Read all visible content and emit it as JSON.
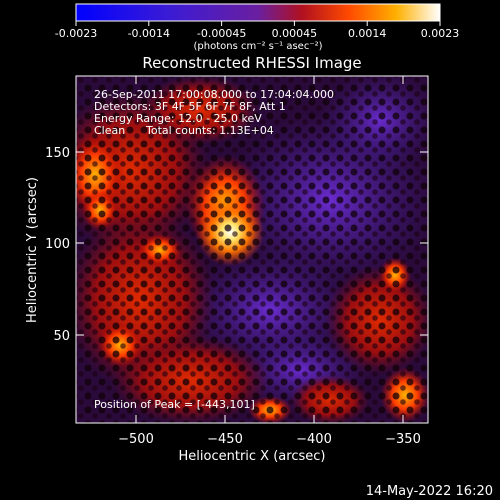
{
  "colorbar": {
    "ticks": [
      "-0.0023",
      "-0.0014",
      "-0.00045",
      "0.00045",
      "0.0014",
      "0.0023"
    ],
    "units": "(photons cm⁻² s⁻¹ asec⁻²)"
  },
  "plot": {
    "title": "Reconstructed RHESSI Image",
    "xlabel": "Heliocentric X (arcsec)",
    "ylabel": "Heliocentric Y (arcsec)",
    "x_ticks": [
      "−500",
      "−450",
      "−400",
      "−350"
    ],
    "y_ticks": [
      "150",
      "100",
      "50"
    ]
  },
  "annotations": {
    "time_range": "26-Sep-2011 17:00:08.000 to 17:04:04.000",
    "detectors": "Detectors: 3F 4F 5F 6F 7F 8F, Att 1",
    "energy": "Energy Range: 12.0 - 25.0 keV",
    "method": "Clean",
    "counts": "Total counts: 1.13E+04",
    "peak": "Position of Peak = [-443,101]"
  },
  "footer": {
    "timestamp": "14-May-2022 16:20"
  },
  "colors": {
    "background": "#000000",
    "cmap_low": "#0000ff",
    "cmap_mid": "#6a1fa0",
    "cmap_high": "#ffffff"
  }
}
